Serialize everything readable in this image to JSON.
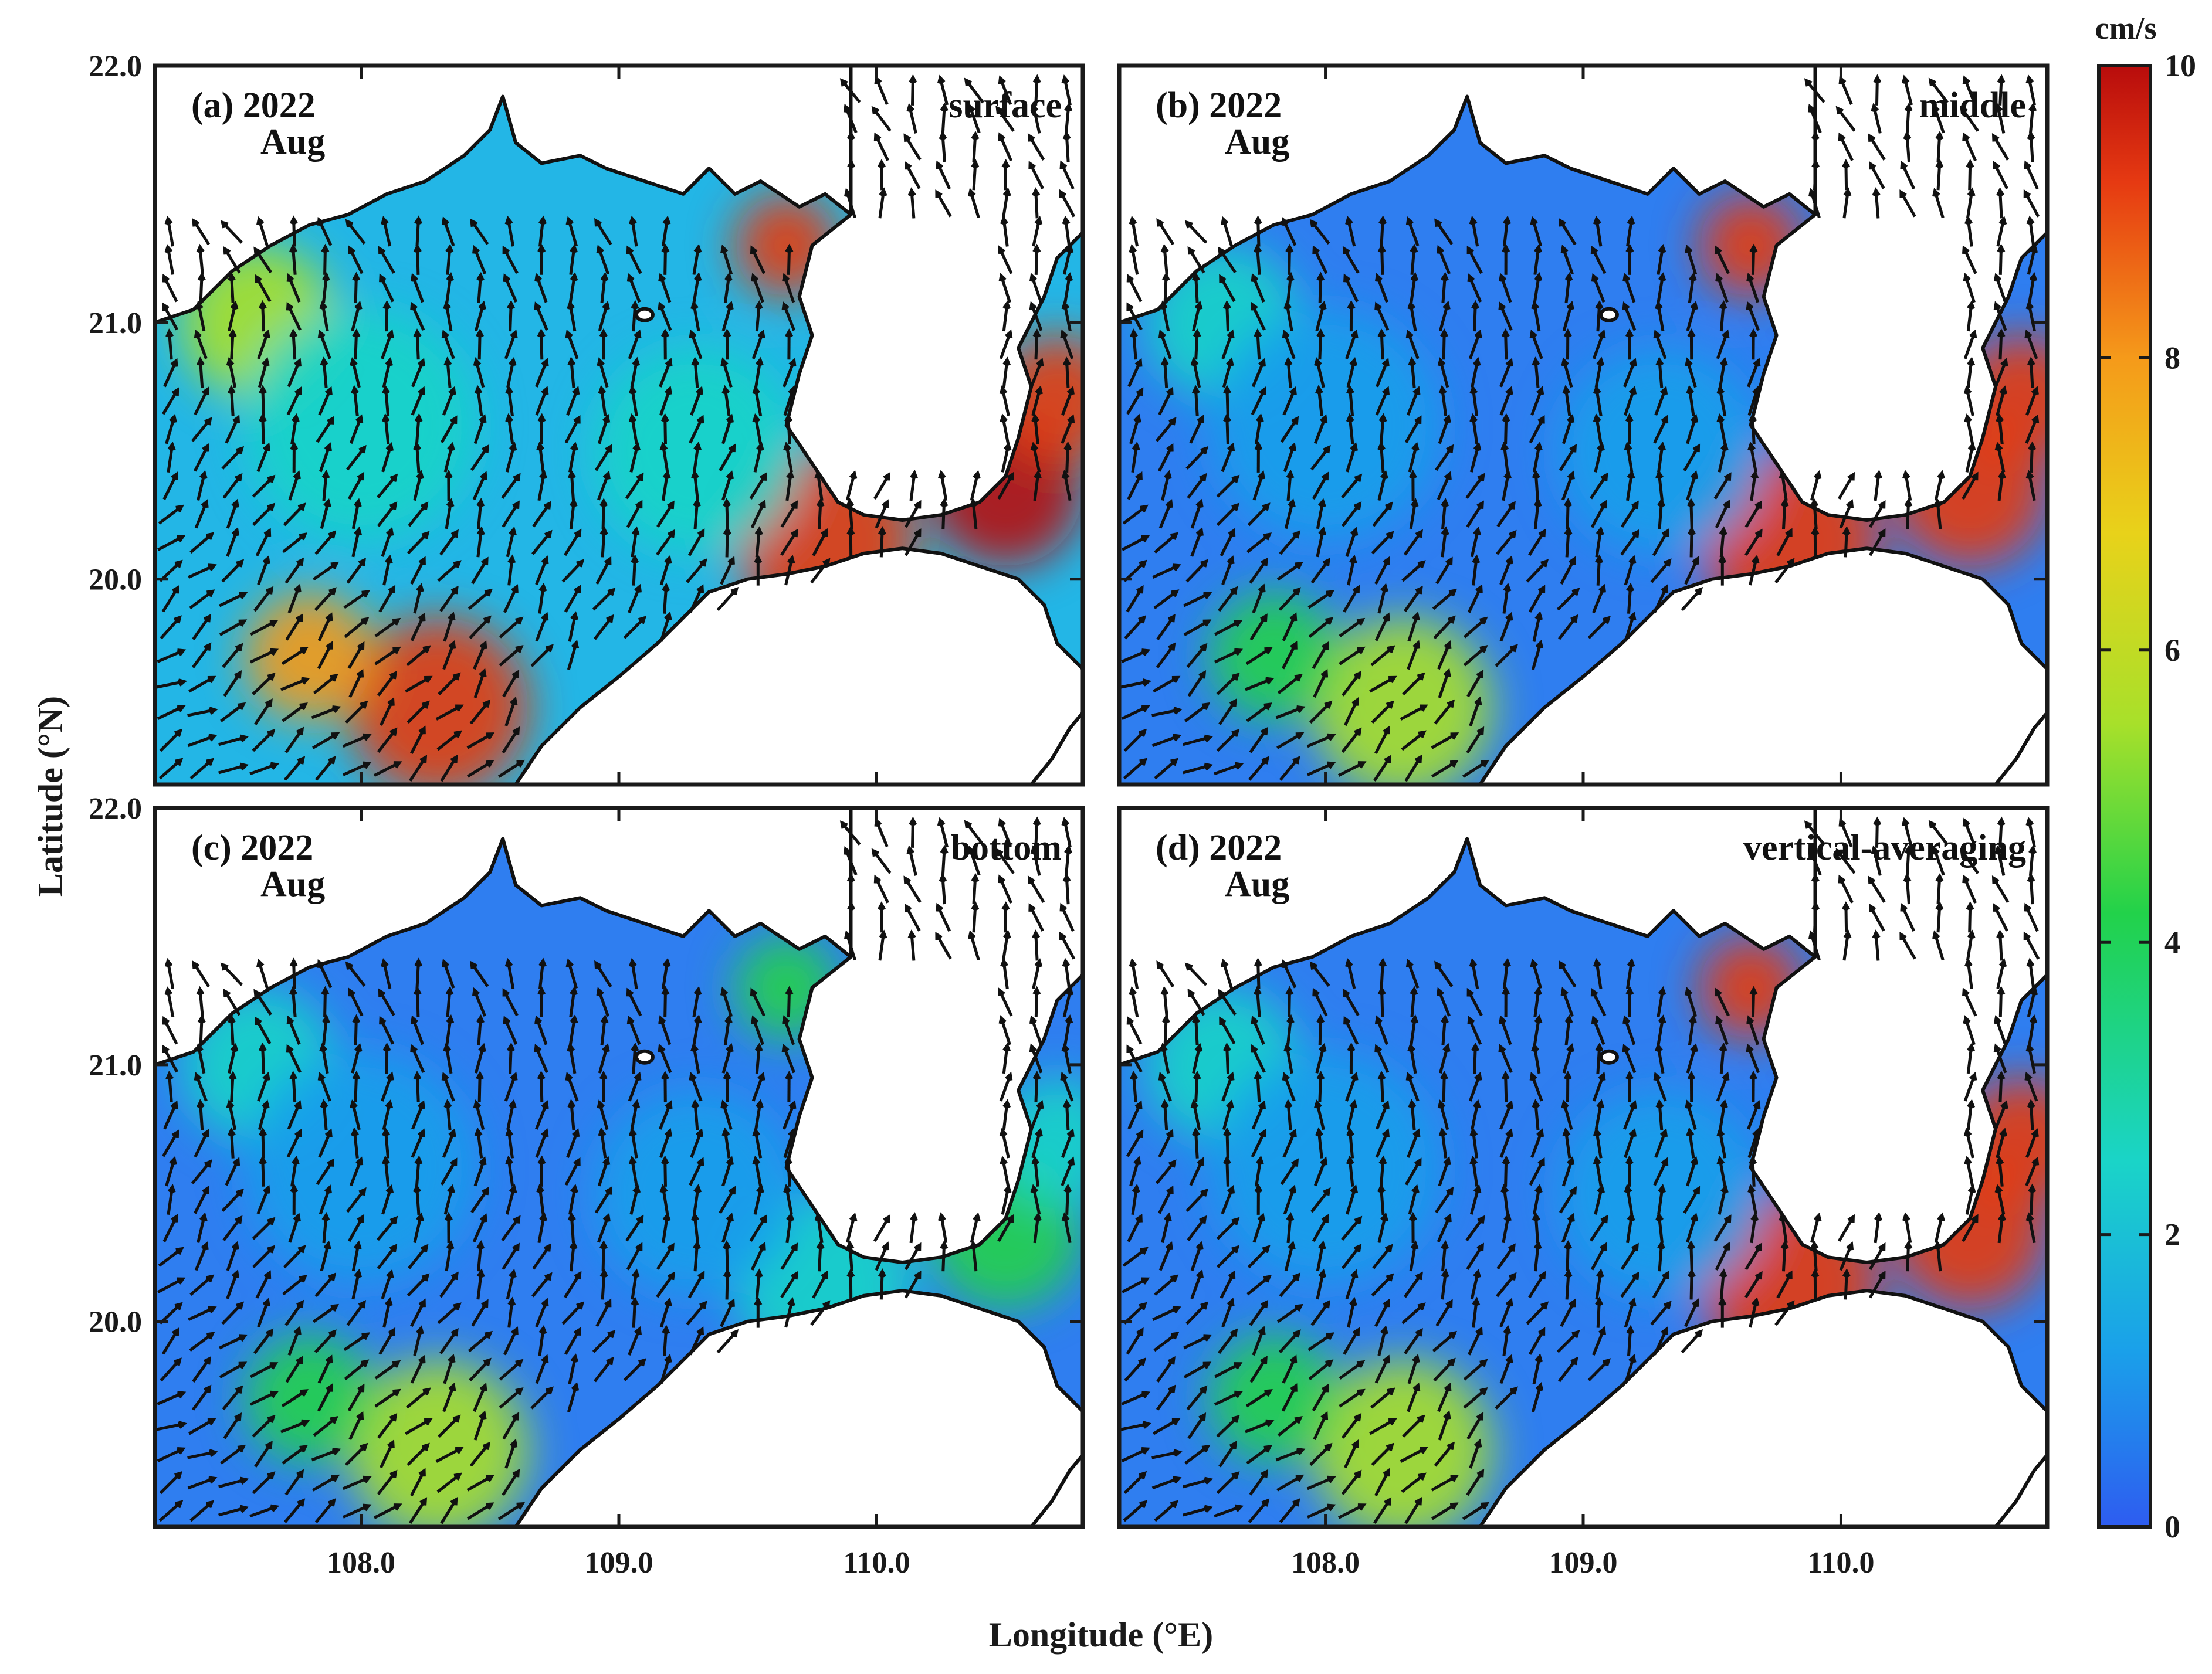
{
  "figure": {
    "xlabel": "Longitude (°E)",
    "ylabel": "Latitude (°N)",
    "x_ticks": [
      "108.0",
      "109.0",
      "110.0"
    ],
    "y_ticks": [
      "22.0",
      "21.0",
      "20.0"
    ],
    "x_tick_values": [
      108.0,
      109.0,
      110.0
    ],
    "y_tick_values": [
      22.0,
      21.0,
      20.0
    ],
    "xlim": [
      107.2,
      110.8
    ],
    "ylim": [
      19.2,
      22.0
    ]
  },
  "panels": [
    {
      "id": "a",
      "tag_line1": "(a) 2022",
      "tag_line2": "Aug",
      "layer": "surface",
      "intensity": 1.0
    },
    {
      "id": "b",
      "tag_line1": "(b) 2022",
      "tag_line2": "Aug",
      "layer": "middle",
      "intensity": 0.62
    },
    {
      "id": "c",
      "tag_line1": "(c) 2022",
      "tag_line2": "Aug",
      "layer": "bottom",
      "intensity": 0.45
    },
    {
      "id": "d",
      "tag_line1": "(d) 2022",
      "tag_line2": "Aug",
      "layer": "vertical-averaging",
      "intensity": 0.6
    }
  ],
  "colorbar": {
    "unit": "cm/s",
    "ticks": [
      "0",
      "2",
      "4",
      "6",
      "8",
      "10"
    ],
    "tick_values": [
      0,
      2,
      4,
      6,
      8,
      10
    ],
    "range": [
      0,
      10
    ],
    "colormap": [
      "#2e5cf0",
      "#1aa0ea",
      "#1ad4c8",
      "#22d24a",
      "#a8e02a",
      "#e8d21a",
      "#f59a1a",
      "#e63a12",
      "#b80c0c"
    ]
  },
  "colors": {
    "land": "#ffffff",
    "coastline": "#111111",
    "vectors": "#111111"
  }
}
